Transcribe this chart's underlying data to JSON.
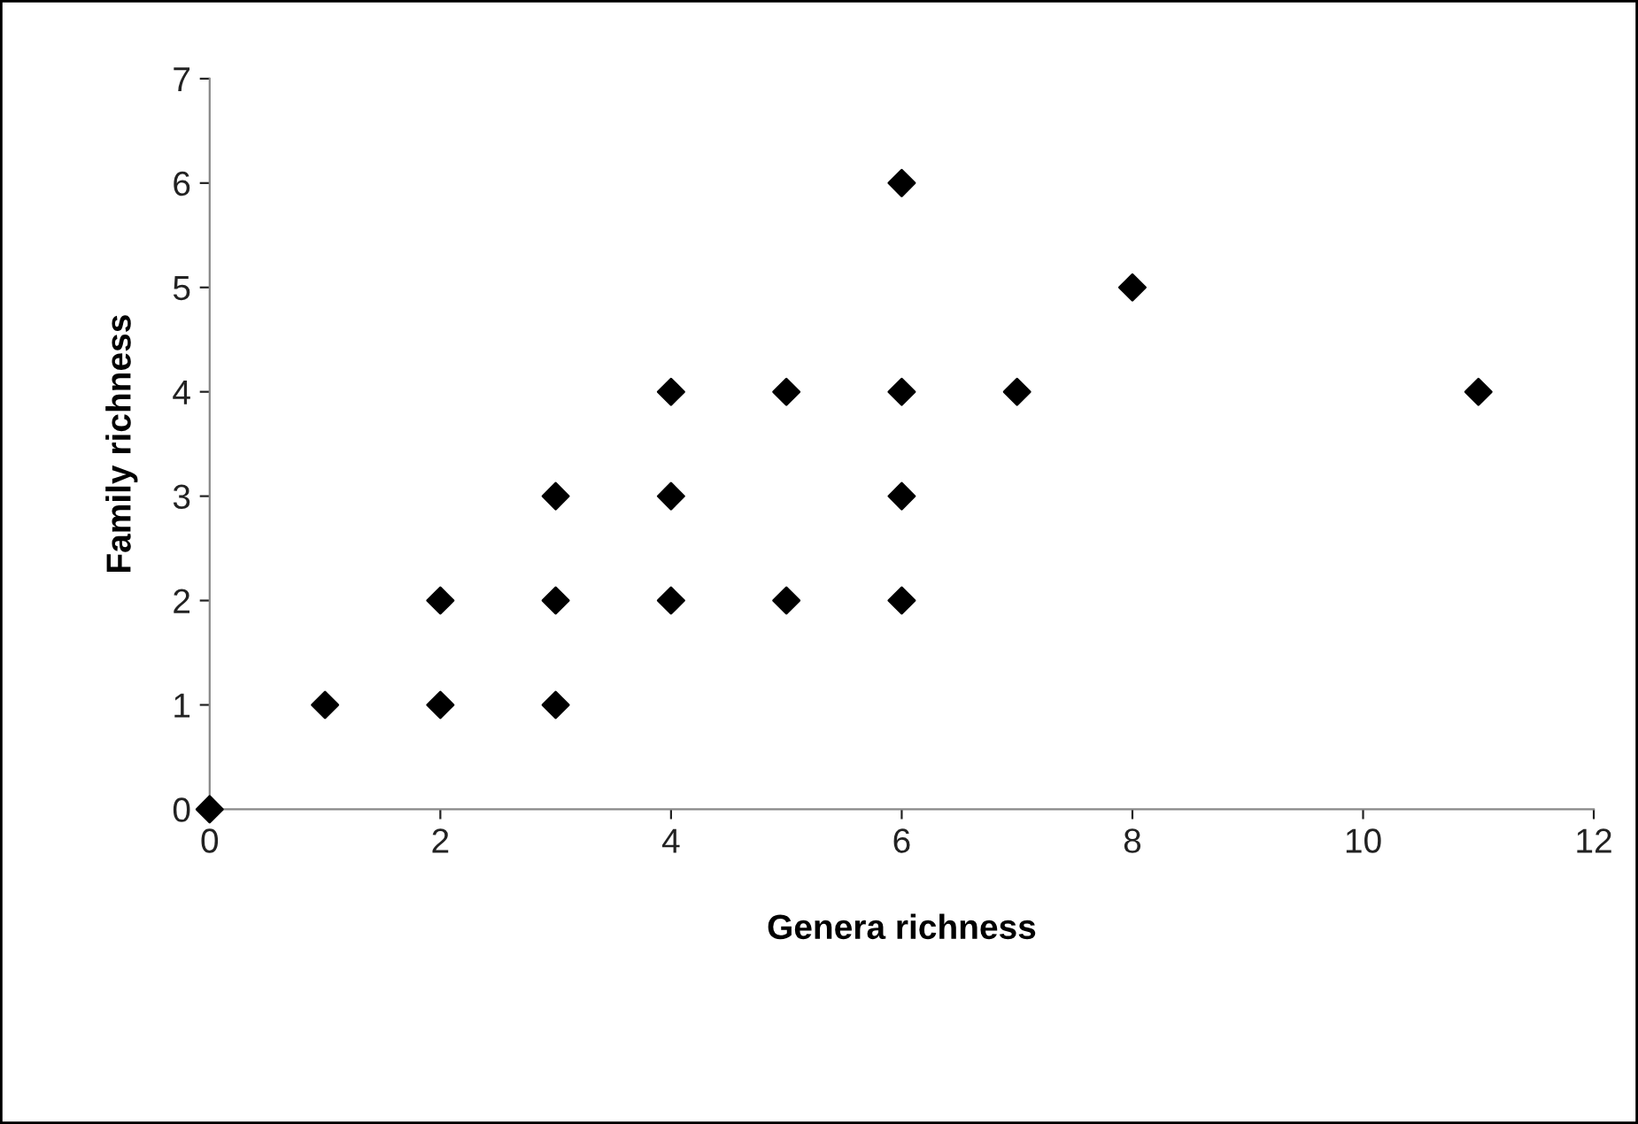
{
  "chart_data": {
    "type": "scatter",
    "xlabel": "Genera richness",
    "ylabel": "Family richness",
    "x": [
      0,
      1,
      2,
      2,
      3,
      3,
      3,
      4,
      4,
      4,
      5,
      5,
      6,
      6,
      6,
      6,
      7,
      8,
      11
    ],
    "series": [
      {
        "color": "#000000",
        "values": [
          0,
          1,
          1,
          2,
          1,
          2,
          3,
          2,
          3,
          4,
          2,
          4,
          2,
          3,
          4,
          6,
          4,
          5,
          4
        ]
      }
    ],
    "xlim": [
      0,
      12
    ],
    "xticks": [
      0,
      2,
      4,
      6,
      8,
      10,
      12
    ],
    "ylim": [
      0,
      7
    ],
    "yticks": [
      0,
      1,
      2,
      3,
      4,
      5,
      6,
      7
    ],
    "marker": "diamond",
    "grid": false,
    "legend": false
  }
}
